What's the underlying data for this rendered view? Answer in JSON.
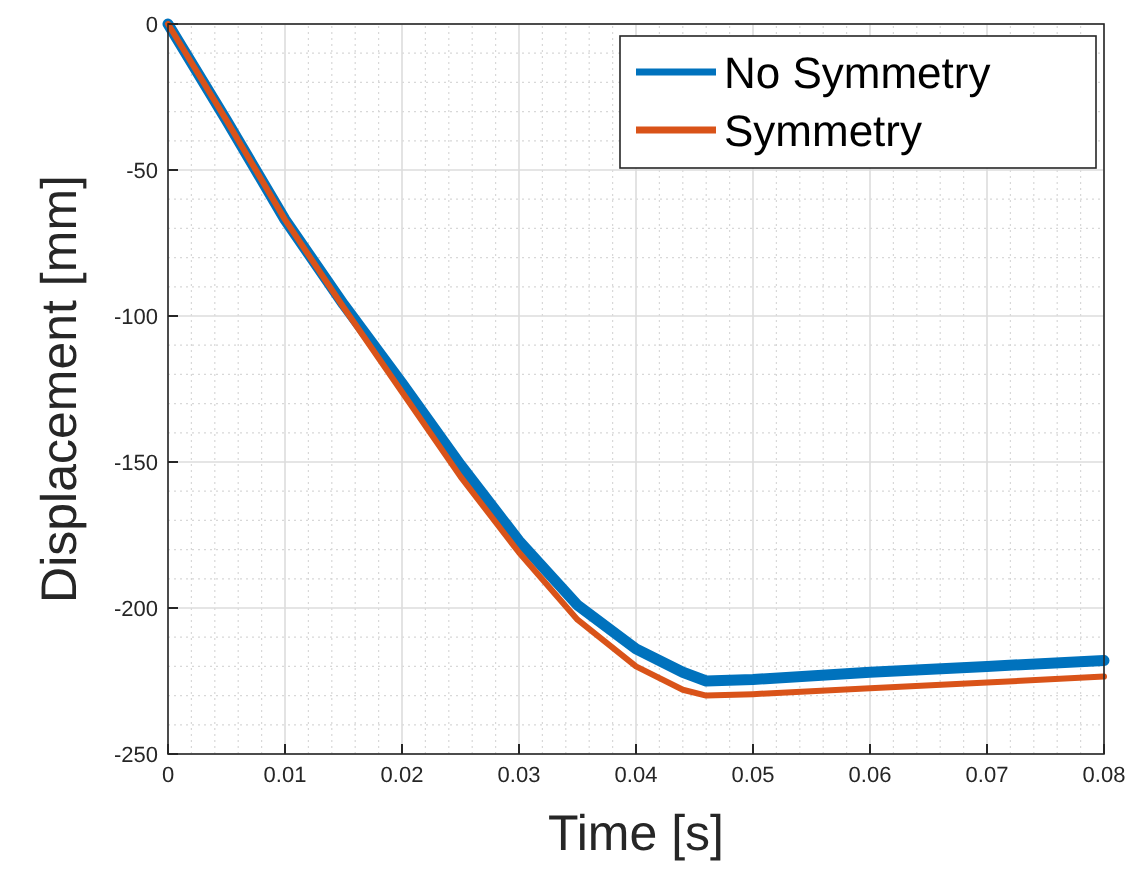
{
  "chart_data": {
    "type": "line",
    "xlabel": "Time [s]",
    "ylabel": "Displacement [mm]",
    "x": [
      0,
      0.005,
      0.01,
      0.015,
      0.02,
      0.025,
      0.03,
      0.035,
      0.04,
      0.044,
      0.046,
      0.05,
      0.06,
      0.07,
      0.08
    ],
    "series": [
      {
        "name": "No Symmetry",
        "color": "#0072bd",
        "values": [
          0,
          -33,
          -67,
          -96,
          -123,
          -151,
          -177,
          -199,
          -214,
          -222,
          -225,
          -224.5,
          -222,
          -220,
          -218
        ]
      },
      {
        "name": "Symmetry",
        "color": "#d95319",
        "values": [
          0,
          -33,
          -67,
          -97,
          -126,
          -155,
          -181,
          -204,
          -220,
          -228,
          -230,
          -229.5,
          -227.5,
          -225.5,
          -223.5
        ]
      }
    ],
    "xlim": [
      0,
      0.08
    ],
    "xticks": [
      0,
      0.01,
      0.02,
      0.03,
      0.04,
      0.05,
      0.06,
      0.07,
      0.08
    ],
    "ylim": [
      -250,
      0
    ],
    "yticks": [
      -250,
      -200,
      -150,
      -100,
      -50,
      0
    ],
    "grid": true,
    "legend": "top right",
    "line_style": "solid",
    "marker": "none"
  }
}
